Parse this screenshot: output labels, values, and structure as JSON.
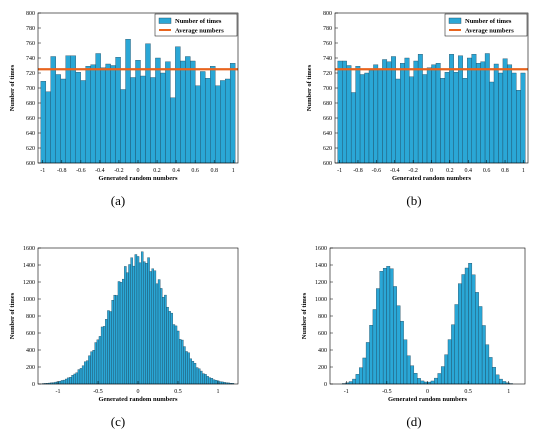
{
  "captions": [
    "(a)",
    "(b)",
    "(c)",
    "(d)"
  ],
  "colors": {
    "bar": "#2aa7d6",
    "bar_edge": "#1a3d52",
    "average_line": "#e8641e"
  },
  "chart_data": [
    {
      "type": "bar",
      "caption": "(a)",
      "xlabel": "Generated random numbers",
      "ylabel": "Number of times",
      "xlim": [
        -1.05,
        1.05
      ],
      "ylim": [
        600,
        800
      ],
      "xticks": [
        -1,
        -0.8,
        -0.6,
        -0.4,
        -0.2,
        0,
        0.2,
        0.4,
        0.6,
        0.8,
        1
      ],
      "yticks": [
        600,
        620,
        640,
        660,
        680,
        700,
        720,
        740,
        760,
        780,
        800
      ],
      "bin_start": -1.0,
      "bin_width": 0.05,
      "series": [
        {
          "name": "Number of times",
          "values": [
            709,
            695,
            742,
            718,
            712,
            743,
            743,
            721,
            710,
            729,
            731,
            746,
            727,
            732,
            730,
            741,
            698,
            765,
            714,
            737,
            716,
            759,
            714,
            740,
            720,
            735,
            687,
            755,
            736,
            742,
            736,
            703,
            722,
            713,
            729,
            703,
            710,
            712,
            733
          ]
        }
      ],
      "average": {
        "name": "Average numbers",
        "value": 725
      },
      "legend": "top-right"
    },
    {
      "type": "bar",
      "caption": "(b)",
      "xlabel": "Generated random numbers",
      "ylabel": "Number of times",
      "xlim": [
        -1.05,
        1.05
      ],
      "ylim": [
        600,
        800
      ],
      "xticks": [
        -1,
        -0.8,
        -0.6,
        -0.4,
        -0.2,
        0,
        0.2,
        0.4,
        0.6,
        0.8,
        1
      ],
      "yticks": [
        600,
        620,
        640,
        660,
        680,
        700,
        720,
        740,
        760,
        780,
        800
      ],
      "bin_start": -1.0,
      "bin_width": 0.05,
      "series": [
        {
          "name": "Number of times",
          "values": [
            736,
            736,
            730,
            694,
            729,
            718,
            720,
            724,
            731,
            725,
            738,
            735,
            742,
            712,
            733,
            740,
            715,
            736,
            745,
            718,
            727,
            731,
            733,
            713,
            721,
            745,
            721,
            743,
            713,
            740,
            745,
            733,
            735,
            746,
            708,
            732,
            720,
            739,
            731,
            720,
            697,
            720
          ]
        }
      ],
      "average": {
        "name": "Average numbers",
        "value": 725
      },
      "legend": "top-right"
    },
    {
      "type": "bar",
      "caption": "(c)",
      "xlabel": "Generated random numbers",
      "ylabel": "Number of times",
      "xlim": [
        -1.25,
        1.25
      ],
      "ylim": [
        0,
        1600
      ],
      "xticks": [
        -1,
        -0.5,
        0,
        0.5,
        1
      ],
      "yticks": [
        0,
        200,
        400,
        600,
        800,
        1000,
        1200,
        1400,
        1600
      ],
      "distribution": {
        "shape": "normal",
        "bins": 91,
        "mean": 0.02,
        "sd": 0.36,
        "peak": 1490
      }
    },
    {
      "type": "bar",
      "caption": "(d)",
      "xlabel": "Generated random numbers",
      "ylabel": "Number of times",
      "xlim": [
        -1.2,
        1.2
      ],
      "ylim": [
        0,
        1600
      ],
      "xticks": [
        -1,
        -0.5,
        0,
        0.5,
        1
      ],
      "yticks": [
        0,
        200,
        400,
        600,
        800,
        1000,
        1200,
        1400,
        1600
      ],
      "distribution": {
        "shape": "bimodal",
        "bins": 50,
        "centers": [
          -0.5,
          0.5
        ],
        "sd": 0.16,
        "peaks": [
          1410,
          1400
        ],
        "dip": 110
      }
    }
  ]
}
